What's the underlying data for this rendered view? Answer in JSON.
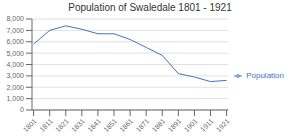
{
  "chart_data": {
    "type": "line",
    "title": "Population of Swaledale 1801 - 1921",
    "x": [
      1801,
      1811,
      1821,
      1831,
      1841,
      1851,
      1861,
      1871,
      1881,
      1891,
      1901,
      1911,
      1921
    ],
    "series": [
      {
        "name": "Population",
        "color": "#4472C4",
        "values": [
          5800,
          7000,
          7400,
          7100,
          6700,
          6700,
          6200,
          5500,
          4800,
          3200,
          2900,
          2500,
          2600
        ]
      }
    ],
    "xlim": [
      1800,
      1922
    ],
    "xticks": [
      1801,
      1811,
      1821,
      1831,
      1841,
      1851,
      1861,
      1871,
      1881,
      1891,
      1901,
      1911,
      1921
    ],
    "ylim": [
      0,
      8000
    ],
    "yticks": [
      0,
      {
        "value": 1000,
        "label": "1,000"
      },
      {
        "value": 2000,
        "label": "2,000"
      },
      {
        "value": 3000,
        "label": "3,000"
      },
      {
        "value": 4000,
        "label": "4,000"
      },
      {
        "value": 5000,
        "label": "5,000"
      },
      {
        "value": 6000,
        "label": "6,000"
      },
      {
        "value": 7000,
        "label": "7,000"
      },
      {
        "value": 8000,
        "label": "8,000"
      }
    ],
    "grid": true,
    "legend": "right"
  }
}
